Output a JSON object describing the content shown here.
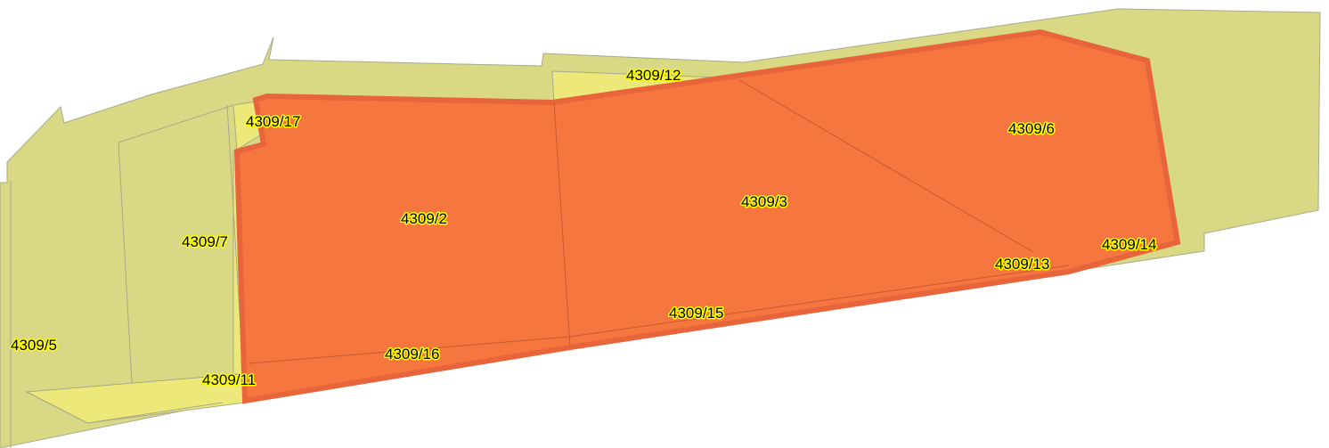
{
  "colors": {
    "land": "#d9d884",
    "strip": "#ece97a",
    "boundary": "#a9a98a",
    "highlight_fill": "#f5763f",
    "highlight_edge": "#e8643a",
    "label_halo": "#ffff00"
  },
  "parcels": [
    {
      "id": "p-4309-12",
      "label": "4309/12"
    },
    {
      "id": "p-4309-17",
      "label": "4309/17"
    },
    {
      "id": "p-4309-6",
      "label": "4309/6"
    },
    {
      "id": "p-4309-3",
      "label": "4309/3"
    },
    {
      "id": "p-4309-2",
      "label": "4309/2"
    },
    {
      "id": "p-4309-7",
      "label": "4309/7"
    },
    {
      "id": "p-4309-14",
      "label": "4309/14"
    },
    {
      "id": "p-4309-13",
      "label": "4309/13"
    },
    {
      "id": "p-4309-15",
      "label": "4309/15"
    },
    {
      "id": "p-4309-5",
      "label": "4309/5"
    },
    {
      "id": "p-4309-16",
      "label": "4309/16"
    },
    {
      "id": "p-4309-11",
      "label": "4309/11"
    }
  ],
  "highlighted_parcels": [
    "4309/2",
    "4309/3",
    "4309/6"
  ]
}
